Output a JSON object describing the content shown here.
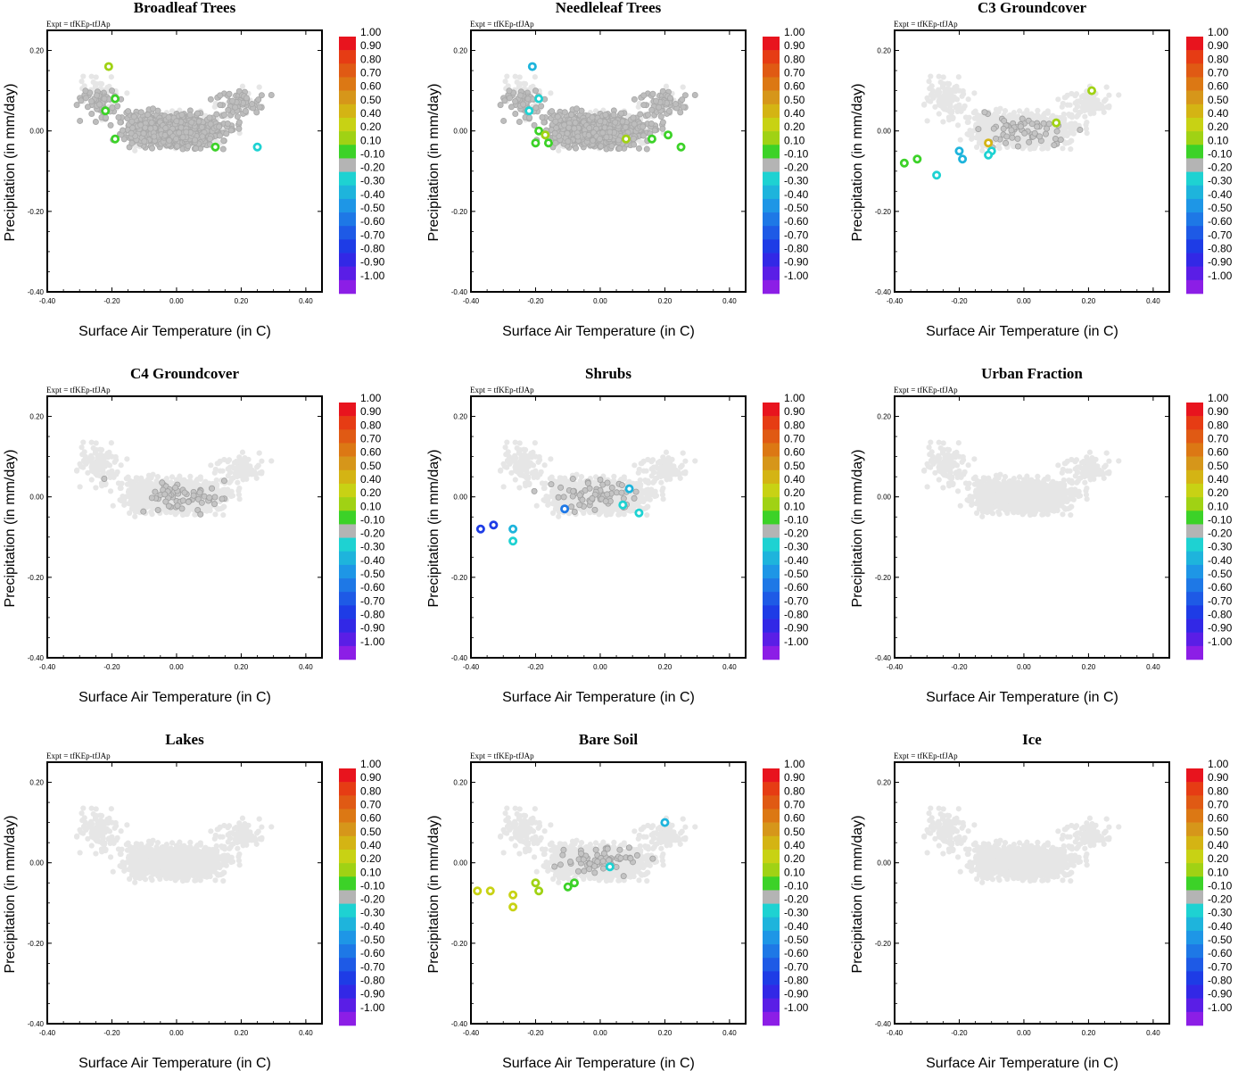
{
  "figure": {
    "expt_label": "Expt = tfKEp-tfJAp",
    "x_axis_label": "Surface Air Temperature (in C)",
    "y_axis_label": "Precipitation (in mm/day)",
    "x_ticks": [
      "-0.40",
      "-0.20",
      "0.00",
      "0.20",
      "0.40"
    ],
    "y_ticks": [
      "0.20",
      "0.00",
      "-0.20",
      "-0.40"
    ],
    "colorbar_labels": [
      "1.00",
      "0.90",
      "0.80",
      "0.70",
      "0.60",
      "0.50",
      "0.40",
      "0.20",
      "0.10",
      "-0.10",
      "-0.20",
      "-0.30",
      "-0.40",
      "-0.50",
      "-0.60",
      "-0.70",
      "-0.80",
      "-0.90",
      "-1.00"
    ],
    "colorbar_colors": [
      "#e8141e",
      "#e63c14",
      "#e05a14",
      "#dc7814",
      "#d6961a",
      "#d4b414",
      "#c8d214",
      "#a0d214",
      "#3cd228",
      "#b4b4b4",
      "#1ed2d2",
      "#1eb4dc",
      "#1e96e6",
      "#1e78e6",
      "#1e5ae6",
      "#1e3ce6",
      "#3228e6",
      "#5a1ee6",
      "#8c1ee6"
    ]
  },
  "chart_data": [
    {
      "type": "scatter",
      "title": "Broadleaf Trees",
      "xlabel": "Surface Air Temperature (in C)",
      "ylabel": "Precipitation (in mm/day)",
      "xlim": [
        -0.4,
        0.45
      ],
      "ylim": [
        -0.4,
        0.25
      ],
      "background": "dense",
      "highlighted_points": [
        {
          "x": -0.21,
          "y": 0.16,
          "color": "#a0d214"
        },
        {
          "x": -0.19,
          "y": 0.08,
          "color": "#3cd228"
        },
        {
          "x": -0.22,
          "y": 0.05,
          "color": "#3cd228"
        },
        {
          "x": -0.19,
          "y": -0.02,
          "color": "#3cd228"
        },
        {
          "x": 0.12,
          "y": -0.04,
          "color": "#3cd228"
        },
        {
          "x": 0.25,
          "y": -0.04,
          "color": "#1ed2d2"
        }
      ]
    },
    {
      "type": "scatter",
      "title": "Needleleaf Trees",
      "xlabel": "Surface Air Temperature (in C)",
      "ylabel": "Precipitation (in mm/day)",
      "xlim": [
        -0.4,
        0.45
      ],
      "ylim": [
        -0.4,
        0.25
      ],
      "background": "dense",
      "highlighted_points": [
        {
          "x": -0.21,
          "y": 0.16,
          "color": "#1eb4dc"
        },
        {
          "x": -0.19,
          "y": 0.08,
          "color": "#1ed2d2"
        },
        {
          "x": -0.22,
          "y": 0.05,
          "color": "#1ed2d2"
        },
        {
          "x": -0.19,
          "y": 0.0,
          "color": "#3cd228"
        },
        {
          "x": -0.2,
          "y": -0.03,
          "color": "#3cd228"
        },
        {
          "x": -0.17,
          "y": -0.01,
          "color": "#a0d214"
        },
        {
          "x": -0.16,
          "y": -0.03,
          "color": "#3cd228"
        },
        {
          "x": 0.08,
          "y": -0.02,
          "color": "#a0d214"
        },
        {
          "x": 0.16,
          "y": -0.02,
          "color": "#3cd228"
        },
        {
          "x": 0.21,
          "y": -0.01,
          "color": "#3cd228"
        },
        {
          "x": 0.25,
          "y": -0.04,
          "color": "#3cd228"
        }
      ]
    },
    {
      "type": "scatter",
      "title": "C3 Groundcover",
      "xlabel": "Surface Air Temperature (in C)",
      "ylabel": "Precipitation (in mm/day)",
      "xlim": [
        -0.4,
        0.45
      ],
      "ylim": [
        -0.4,
        0.25
      ],
      "background": "light",
      "highlighted_points": [
        {
          "x": 0.21,
          "y": 0.1,
          "color": "#a0d214"
        },
        {
          "x": 0.1,
          "y": 0.02,
          "color": "#a0d214"
        },
        {
          "x": -0.37,
          "y": -0.08,
          "color": "#3cd228"
        },
        {
          "x": -0.33,
          "y": -0.07,
          "color": "#3cd228"
        },
        {
          "x": -0.27,
          "y": -0.11,
          "color": "#1ed2d2"
        },
        {
          "x": -0.2,
          "y": -0.05,
          "color": "#1eb4dc"
        },
        {
          "x": -0.19,
          "y": -0.07,
          "color": "#1eb4dc"
        },
        {
          "x": -0.11,
          "y": -0.03,
          "color": "#d4b414"
        },
        {
          "x": -0.1,
          "y": -0.05,
          "color": "#1ed2d2"
        },
        {
          "x": -0.11,
          "y": -0.06,
          "color": "#1ed2d2"
        }
      ]
    },
    {
      "type": "scatter",
      "title": "C4 Groundcover",
      "xlabel": "Surface Air Temperature (in C)",
      "ylabel": "Precipitation (in mm/day)",
      "xlim": [
        -0.4,
        0.45
      ],
      "ylim": [
        -0.4,
        0.25
      ],
      "background": "light",
      "highlighted_points": []
    },
    {
      "type": "scatter",
      "title": "Shrubs",
      "xlabel": "Surface Air Temperature (in C)",
      "ylabel": "Precipitation (in mm/day)",
      "xlim": [
        -0.4,
        0.45
      ],
      "ylim": [
        -0.4,
        0.25
      ],
      "background": "light",
      "highlighted_points": [
        {
          "x": -0.37,
          "y": -0.08,
          "color": "#1e3ce6"
        },
        {
          "x": -0.33,
          "y": -0.07,
          "color": "#1e3ce6"
        },
        {
          "x": -0.27,
          "y": -0.08,
          "color": "#1eb4dc"
        },
        {
          "x": -0.27,
          "y": -0.11,
          "color": "#1ed2d2"
        },
        {
          "x": -0.11,
          "y": -0.03,
          "color": "#1e78e6"
        },
        {
          "x": 0.07,
          "y": -0.02,
          "color": "#1ed2d2"
        },
        {
          "x": 0.09,
          "y": 0.02,
          "color": "#1eb4dc"
        },
        {
          "x": 0.12,
          "y": -0.04,
          "color": "#1ed2d2"
        }
      ]
    },
    {
      "type": "scatter",
      "title": "Urban Fraction",
      "xlabel": "Surface Air Temperature (in C)",
      "ylabel": "Precipitation (in mm/day)",
      "xlim": [
        -0.4,
        0.45
      ],
      "ylim": [
        -0.4,
        0.25
      ],
      "background": "none",
      "highlighted_points": []
    },
    {
      "type": "scatter",
      "title": "Lakes",
      "xlabel": "Surface Air Temperature (in C)",
      "ylabel": "Precipitation (in mm/day)",
      "xlim": [
        -0.4,
        0.45
      ],
      "ylim": [
        -0.4,
        0.25
      ],
      "background": "none",
      "highlighted_points": []
    },
    {
      "type": "scatter",
      "title": "Bare Soil",
      "xlabel": "Surface Air Temperature (in C)",
      "ylabel": "Precipitation (in mm/day)",
      "xlim": [
        -0.4,
        0.45
      ],
      "ylim": [
        -0.4,
        0.25
      ],
      "background": "light",
      "highlighted_points": [
        {
          "x": -0.38,
          "y": -0.07,
          "color": "#c8d214"
        },
        {
          "x": -0.34,
          "y": -0.07,
          "color": "#c8d214"
        },
        {
          "x": -0.27,
          "y": -0.08,
          "color": "#c8d214"
        },
        {
          "x": -0.27,
          "y": -0.11,
          "color": "#c8d214"
        },
        {
          "x": -0.2,
          "y": -0.05,
          "color": "#a0d214"
        },
        {
          "x": -0.19,
          "y": -0.07,
          "color": "#a0d214"
        },
        {
          "x": -0.1,
          "y": -0.06,
          "color": "#3cd228"
        },
        {
          "x": -0.08,
          "y": -0.05,
          "color": "#3cd228"
        },
        {
          "x": 0.03,
          "y": -0.01,
          "color": "#1ed2d2"
        },
        {
          "x": 0.2,
          "y": 0.1,
          "color": "#1eb4dc"
        }
      ]
    },
    {
      "type": "scatter",
      "title": "Ice",
      "xlabel": "Surface Air Temperature (in C)",
      "ylabel": "Precipitation (in mm/day)",
      "xlim": [
        -0.4,
        0.45
      ],
      "ylim": [
        -0.4,
        0.25
      ],
      "background": "none",
      "highlighted_points": []
    }
  ]
}
